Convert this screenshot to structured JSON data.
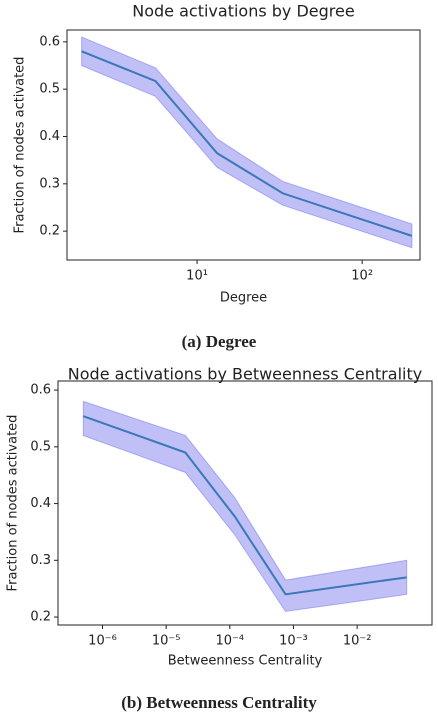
{
  "chart_data": [
    {
      "type": "line",
      "title": "Node activations by Degree",
      "xlabel": "Degree",
      "ylabel": "Fraction of nodes activated",
      "caption": "(a) Degree",
      "xscale": "log",
      "xlim": [
        1.63,
        224
      ],
      "xticks": [
        {
          "value": 10,
          "label": "10¹"
        },
        {
          "value": 100,
          "label": "10²"
        }
      ],
      "ylim": [
        0.139,
        0.625
      ],
      "yticks": [
        0.2,
        0.3,
        0.4,
        0.5,
        0.6
      ],
      "x": [
        2,
        5.6,
        13.2,
        33,
        200
      ],
      "values": [
        0.58,
        0.517,
        0.365,
        0.28,
        0.19
      ],
      "upper": [
        0.61,
        0.545,
        0.395,
        0.305,
        0.215
      ],
      "lower": [
        0.55,
        0.485,
        0.335,
        0.255,
        0.165
      ],
      "color": "#3a78b8",
      "band_color": "#8c8cf0"
    },
    {
      "type": "line",
      "title": "Node activations by Betweenness Centrality",
      "xlabel": "Betweenness Centrality",
      "ylabel": "Fraction of nodes activated",
      "caption": "(b) Betweenness Centrality",
      "xscale": "log",
      "xlim": [
        2e-07,
        0.15
      ],
      "xticks": [
        {
          "value": 1e-06,
          "label": "10⁻⁶"
        },
        {
          "value": 1e-05,
          "label": "10⁻⁵"
        },
        {
          "value": 0.0001,
          "label": "10⁻⁴"
        },
        {
          "value": 0.001,
          "label": "10⁻³"
        },
        {
          "value": 0.01,
          "label": "10⁻²"
        }
      ],
      "ylim": [
        0.186,
        0.616
      ],
      "yticks": [
        0.2,
        0.3,
        0.4,
        0.5,
        0.6
      ],
      "x": [
        5e-07,
        2e-05,
        0.00012,
        0.00075,
        0.06
      ],
      "values": [
        0.554,
        0.49,
        0.377,
        0.24,
        0.27
      ],
      "upper": [
        0.58,
        0.52,
        0.41,
        0.265,
        0.3
      ],
      "lower": [
        0.52,
        0.455,
        0.345,
        0.21,
        0.24
      ],
      "color": "#3a78b8",
      "band_color": "#8c8cf0"
    }
  ]
}
